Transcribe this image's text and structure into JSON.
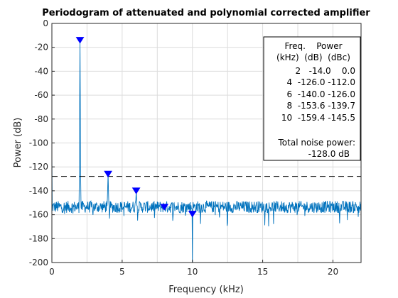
{
  "chart_data": {
    "type": "line",
    "title": "Periodogram of attenuated and polynomial corrected amplifier",
    "xlabel": "Frequency (kHz)",
    "ylabel": "Power (dB)",
    "xlim": [
      0,
      22
    ],
    "ylim": [
      -200,
      0
    ],
    "xticks": [
      "0",
      "5",
      "10",
      "15",
      "20"
    ],
    "yticks": [
      "0",
      "-20",
      "-40",
      "-60",
      "-80",
      "-100",
      "-120",
      "-140",
      "-160",
      "-180",
      "-200"
    ],
    "grid": true,
    "line_color": "#0072BD",
    "marker_color": "#0000FF",
    "noise_floor_db": -153,
    "noise_floor_spread_db": 10,
    "harmonics": [
      {
        "freq_khz": 2,
        "power_db": -14.0
      },
      {
        "freq_khz": 4,
        "power_db": -126.0
      },
      {
        "freq_khz": 6,
        "power_db": -140.0
      },
      {
        "freq_khz": 8,
        "power_db": -153.6
      },
      {
        "freq_khz": 10,
        "power_db": -159.4
      }
    ],
    "total_noise_line_db": -128.0,
    "dips": [
      {
        "freq_khz": 10,
        "power_db": -200
      }
    ],
    "edge_value_db": -108
  },
  "legend": {
    "header1": "Freq.    Power",
    "header2": "(kHz)  (dB)  (dBc)",
    "rows": [
      "2   -14.0    0.0",
      "4  -126.0 -112.0",
      "6  -140.0 -126.0",
      "8  -153.6 -139.7",
      "10  -159.4 -145.5"
    ],
    "noise_label": "Total noise power:",
    "noise_value": "-128.0 dB"
  }
}
